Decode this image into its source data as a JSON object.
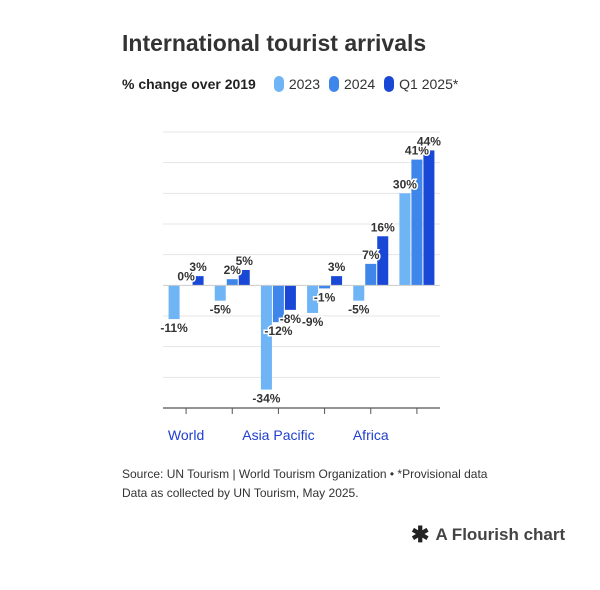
{
  "chart_data": {
    "type": "bar",
    "title": "International tourist arrivals",
    "legend_title": "% change over 2019",
    "legend_placement": "top-left",
    "grid": true,
    "ylim": [
      -40,
      50
    ],
    "categories": [
      "World",
      "",
      "Asia Pacific",
      "",
      "Africa",
      ""
    ],
    "series": [
      {
        "name": "2023",
        "color": "#6fb4f5",
        "values": [
          -11,
          -5,
          -34,
          -9,
          -5,
          30
        ]
      },
      {
        "name": "2024",
        "color": "#3f86eb",
        "values": [
          0,
          2,
          -12,
          -1,
          7,
          41
        ]
      },
      {
        "name": "Q1 2025*",
        "color": "#1a48d6",
        "values": [
          3,
          5,
          -8,
          3,
          16,
          44
        ]
      }
    ],
    "data_labels": [
      [
        "-11%",
        "-5%",
        "-34%",
        "-9%",
        "-5%",
        "30%"
      ],
      [
        "0%",
        "2%",
        "-12%",
        "-1%",
        "7%",
        "41%"
      ],
      [
        "3%",
        "5%",
        "-8%",
        "3%",
        "16%",
        "44%"
      ]
    ]
  },
  "footer": {
    "source": "Source: UN Tourism | World Tourism Organization • *Provisional data",
    "note": "Data as collected by UN Tourism, May 2025."
  },
  "branding": {
    "icon": "flourish-logo-icon",
    "text": "A Flourish chart"
  },
  "colors": {
    "axis_label": "#1f3fcf",
    "grid": "#e4e4e4",
    "axis": "#555555"
  }
}
